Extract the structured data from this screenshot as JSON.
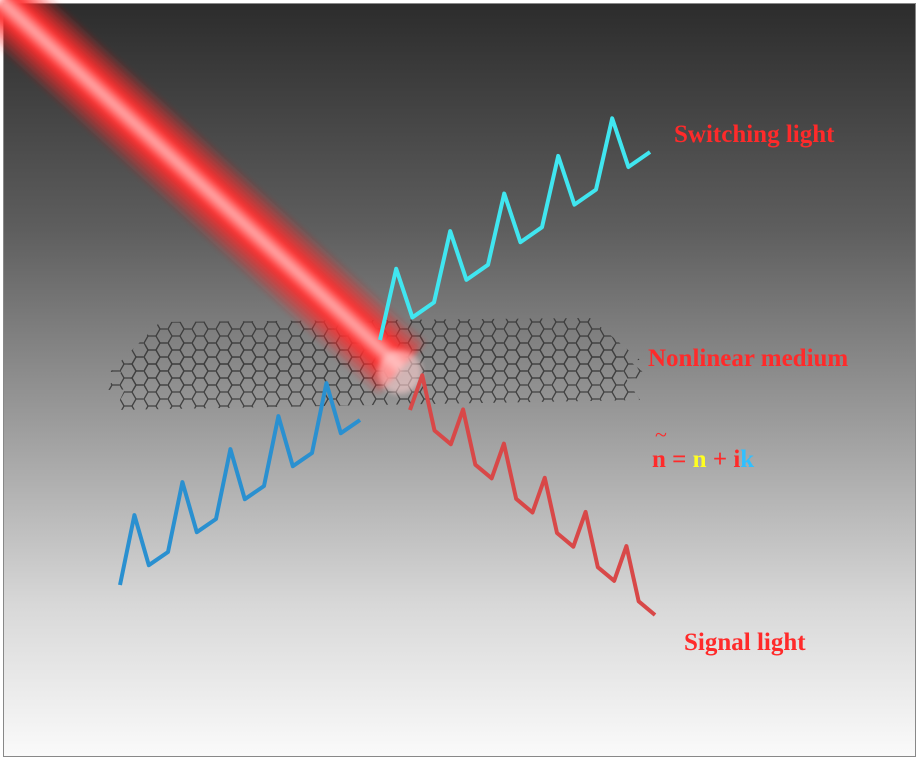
{
  "labels": {
    "switching": "Switching light",
    "medium": "Nonlinear medium",
    "signal": "Signal light"
  },
  "equation": {
    "tilde": "~",
    "n_tilde": "n",
    "equals": " = ",
    "n": "n",
    "plus": " + ",
    "i": "i",
    "k": "k"
  },
  "colors": {
    "beam": "#ff3030",
    "switching_wave": "#40e6f0",
    "incident_wave": "#2a8fd0",
    "signal_wave": "#e04848",
    "label": "#ff2a2a",
    "n_real": "#ffff20",
    "k_imag": "#30c0ff"
  }
}
